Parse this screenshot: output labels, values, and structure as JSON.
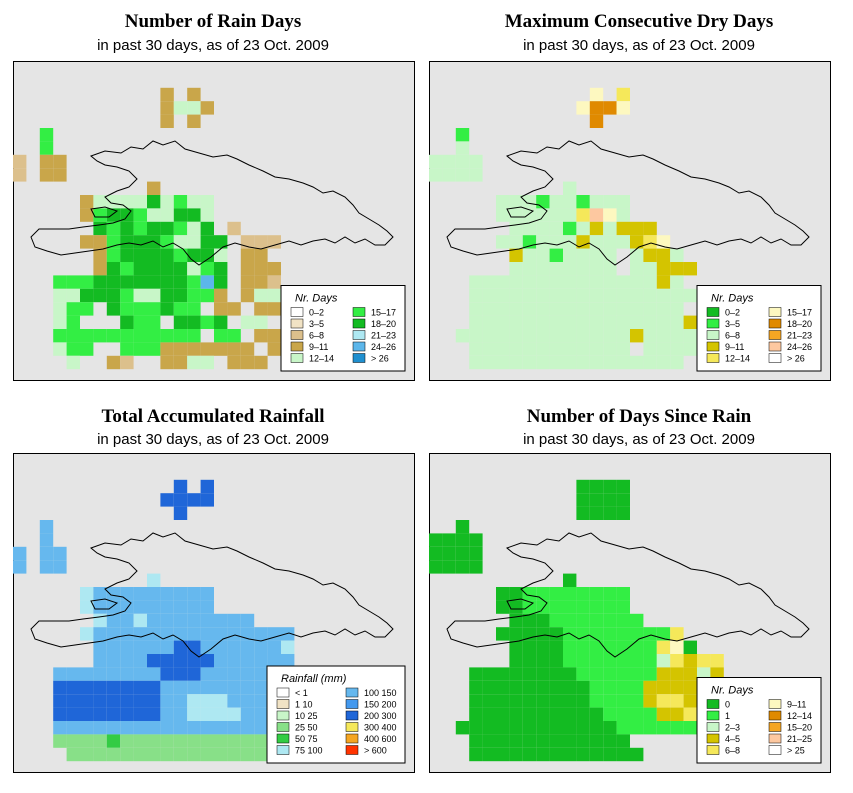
{
  "chart_data": [
    {
      "type": "heatmap",
      "title": "Number of Rain Days",
      "subtitle": "in past 30 days, as of  23 Oct. 2009",
      "legend_title": "Nr. Days",
      "legend_placement": "bottom-right",
      "legend": [
        {
          "label": "0–2",
          "color": "#ffffff"
        },
        {
          "label": "3–5",
          "color": "#f1e3c5"
        },
        {
          "label": "6–8",
          "color": "#dcc08c"
        },
        {
          "label": "9–11",
          "color": "#c9a64a"
        },
        {
          "label": "12–14",
          "color": "#c8f6c8"
        },
        {
          "label": "15–17",
          "color": "#33ee44"
        },
        {
          "label": "18–20",
          "color": "#13bb22"
        },
        {
          "label": "21–23",
          "color": "#aee8f2"
        },
        {
          "label": "24–26",
          "color": "#5cb6ea"
        },
        {
          "label": "> 26",
          "color": "#1f8fcf"
        }
      ],
      "grid": [
        "......................",
        "......................",
        "...........3.3........",
        "...........3443.......",
        "...........3.3........",
        "..5...................",
        "..5...................",
        "2.33..................",
        "2.33..................",
        "..........3...........",
        ".....3444464544.......",
        ".....3566544664.......",
        "......656566546.2.....",
        ".....33566654466.222..",
        "......3566665664.33...",
        "......3656666456.333..",
        "...5556666666586.332..",
        "...4466654466553.3442.",
        "...455.6555655.33.33..",
        "...45...655.6656.44...",
        "...55555555555.55.33.",
        "...455..5553333333.33.",
        "....4..32..3344.333...",
        "....444.44.3.34.344...",
        ".....44.43.3.3.3......",
        "..........332..3......",
        "..........3.3.3.......",
        "..........3333........",
        ".......................",
        "......................"
      ]
    },
    {
      "type": "heatmap",
      "title": "Maximum Consecutive Dry Days",
      "subtitle": "in past 30 days, as of  23 Oct. 2009",
      "legend_title": "Nr. Days",
      "legend_placement": "bottom-right",
      "legend": [
        {
          "label": "0–2",
          "color": "#13bb22"
        },
        {
          "label": "3–5",
          "color": "#33ee44"
        },
        {
          "label": "6–8",
          "color": "#c8f6c8"
        },
        {
          "label": "9–11",
          "color": "#d4c400"
        },
        {
          "label": "12–14",
          "color": "#f5e85a"
        },
        {
          "label": "15–17",
          "color": "#fdf8c0"
        },
        {
          "label": "18–20",
          "color": "#e08a00"
        },
        {
          "label": "21–23",
          "color": "#f5a623"
        },
        {
          "label": "24–26",
          "color": "#fdc8a0"
        },
        {
          "label": "> 26",
          "color": "#ffffff"
        }
      ],
      "grid": [
        "......................",
        "......................",
        "............5.4.......",
        "...........5665.......",
        "............6.........",
        "..1...................",
        "..2...................",
        "2222..................",
        "2222..................",
        "..........2...........",
        ".....2221221222.......",
        ".....2222224852.......",
        "......22221232333.....",
        ".....2212223222345....",
        "......32212222.2332...",
        "......22222222.22333..",
        "...2222222222222232...",
        "...22222222222222222..",
        "...2222222222222222...",
        "...22222222222222223..",
        "..222222222222232222..",
        "...222222222222.22222.",
        "...2222222222222222...",
        "....2222222222222.....",
        ".....22222222222......",
        "..........3334........",
        "..........3.3.3.......",
        "..........3333........",
        "......................",
        "......................"
      ]
    },
    {
      "type": "heatmap",
      "title": "Total Accumulated Rainfall",
      "subtitle": "in past 30 days, as of  23 Oct. 2009",
      "legend_title": "Rainfall (mm)",
      "legend_placement": "bottom-right",
      "legend": [
        {
          "label": "< 1",
          "color": "#ffffff"
        },
        {
          "label": "1    10",
          "color": "#f1e3c5"
        },
        {
          "label": "10    25",
          "color": "#c8f6c8"
        },
        {
          "label": "25    50",
          "color": "#88e088"
        },
        {
          "label": "50    75",
          "color": "#33cc44"
        },
        {
          "label": "75   100",
          "color": "#aee8f2"
        },
        {
          "label": "100   150",
          "color": "#66b8ee"
        },
        {
          "label": "150   200",
          "color": "#4499ee"
        },
        {
          "label": "200   300",
          "color": "#1f66d8"
        },
        {
          "label": "300   400",
          "color": "#f5e85a"
        },
        {
          "label": "400   600",
          "color": "#f5a623"
        },
        {
          "label": "> 600",
          "color": "#ff3300"
        }
      ],
      "grid": [
        "......................",
        "......................",
        "............8.8.......",
        "...........8888.......",
        "............8.........",
        "..6...................",
        "..6...................",
        "6.66..................",
        "6.66..................",
        "..........5...........",
        ".....5666666666.......",
        ".....5666666666.......",
        "......566566666666....",
        ".....5666666666666666.",
        "......666666886666665.",
        "......666688888666666..",
        "...666666668886666666..",
        "...8888888866666666666.",
        "...888888886655566666..",
        "...88888888665555666...",
        "...666666666666666666..",
        "...33334333333333333...",
        "....3333333333333333...",
        "....333333333333333....",
        ".....3333333333........",
        "..........444..4.......",
        "..........4.4.4........",
        "..........4444.........",
        "......................",
        "......................"
      ]
    },
    {
      "type": "heatmap",
      "title": "Number of Days Since Rain",
      "subtitle": "in past 30 days, as of  23 Oct. 2009",
      "legend_title": "Nr. Days",
      "legend_placement": "bottom-right",
      "legend": [
        {
          "label": "0",
          "color": "#13bb22"
        },
        {
          "label": "1",
          "color": "#33ee44"
        },
        {
          "label": "2–3",
          "color": "#c8f6c8"
        },
        {
          "label": "4–5",
          "color": "#d4c400"
        },
        {
          "label": "6–8",
          "color": "#f5e85a"
        },
        {
          "label": "9–11",
          "color": "#fdf8c0"
        },
        {
          "label": "12–14",
          "color": "#e08a00"
        },
        {
          "label": "15–20",
          "color": "#f5a623"
        },
        {
          "label": "21–25",
          "color": "#fdc8a0"
        },
        {
          "label": "> 25",
          "color": "#ffffff"
        }
      ],
      "grid": [
        "......................",
        "......................",
        "...........0000.......",
        "...........0000.......",
        "...........0000.......",
        "..0...................",
        "0000..................",
        "0000..................",
        "0000..................",
        "..........0...........",
        ".....0011111111.......",
        ".....0011111111.......",
        "......0001111111......",
        ".....00000111111114...",
        "......00001111111450..",
        "......0000111111124344..",
        "...0000000011111133323..",
        "...0000000001111333332..",
        "...00000000011113443335.",
        "...00000000001111334.....",
        "..000000000000111111.....",
        "...000000000000..........",
        "...0000000000000.........",
        "....0000000000..........",
        ".....0000000000.........",
        "..........000...........",
        "..........0.0.0.........",
        "..........0000..........",
        "........................",
        "........................"
      ]
    }
  ]
}
